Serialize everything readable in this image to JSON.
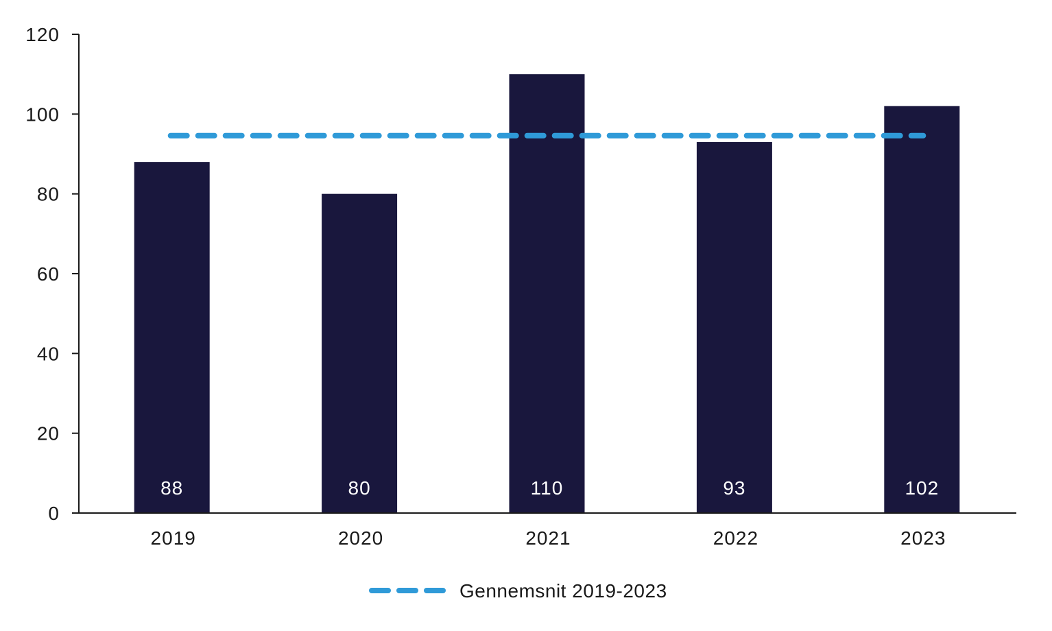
{
  "chart_data": {
    "type": "bar",
    "title": "",
    "xlabel": "",
    "ylabel": "",
    "categories": [
      "2019",
      "2020",
      "2021",
      "2022",
      "2023"
    ],
    "series": [
      {
        "values": [
          88,
          80,
          110,
          93,
          102
        ],
        "data_labels": [
          "88",
          "80",
          "110",
          "93",
          "102"
        ]
      }
    ],
    "reference_line": {
      "name": "Gennemsnit 2019-2023",
      "value": 94.6,
      "style": "dashed"
    },
    "ylim": [
      0,
      120
    ],
    "yticks": [
      0,
      20,
      40,
      60,
      80,
      100,
      120
    ],
    "ytick_labels": [
      "0",
      "20",
      "40",
      "60",
      "80",
      "100",
      "120"
    ],
    "grid": false,
    "legend": {
      "position": "bottom-center",
      "entries": [
        "Gennemsnit 2019-2023"
      ]
    },
    "colors": {
      "bar": "#19173d",
      "average_line": "#2f9ad8",
      "axis": "#1a1a1a",
      "bar_label": "#ffffff"
    }
  }
}
